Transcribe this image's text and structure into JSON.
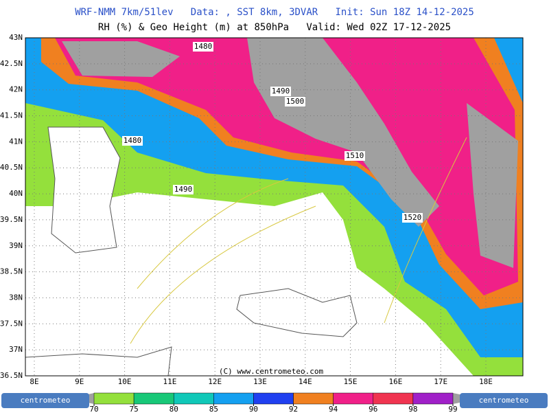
{
  "header": {
    "line1": "WRF-NMM 7km/51lev   Data: , SST 8km, 3DVAR   Init: Sun 18Z 14-12-2025",
    "line2": "RH (%) & Geo Height (m) at 850hPa   Valid: Wed 02Z 17-12-2025"
  },
  "map": {
    "lat_labels": [
      "43N",
      "42.5N",
      "42N",
      "41.5N",
      "41N",
      "40.5N",
      "40N",
      "39.5N",
      "39N",
      "38.5N",
      "38N",
      "37.5N",
      "37N",
      "36.5N"
    ],
    "lon_labels": [
      "8E",
      "9E",
      "10E",
      "11E",
      "12E",
      "13E",
      "14E",
      "15E",
      "16E",
      "17E",
      "18E"
    ],
    "contour_labels": [
      "1480",
      "1490",
      "1500",
      "1480",
      "1510",
      "1490",
      "1520"
    ],
    "copyright": "(C) www.centrometeo.com"
  },
  "legend": {
    "ticks": [
      70,
      75,
      80,
      85,
      90,
      92,
      94,
      96,
      98,
      99
    ],
    "colors": [
      "#94e03c",
      "#18c878",
      "#10c8b8",
      "#14a0f0",
      "#2040f0",
      "#f08020",
      "#f02088",
      "#f03450",
      "#a020c8"
    ]
  },
  "logos": [
    "centrometeo",
    "centrometeo"
  ]
}
